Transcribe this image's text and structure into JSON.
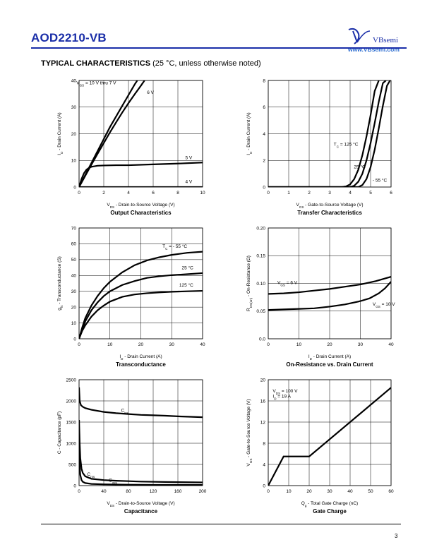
{
  "header": {
    "part_number": "AOD2210-VB",
    "brand": "VBsemi",
    "url": "www.VBsemi.com",
    "brand_color": "#1a2ea8"
  },
  "section": {
    "title_bold": "TYPICAL CHARACTERISTICS",
    "title_normal": " (25 °C, unless otherwise noted)"
  },
  "page_number": "3",
  "chart_data": [
    {
      "id": "output",
      "type": "line",
      "title": "Output Characteristics",
      "xlabel": "V_DS - Drain-to-Source Voltage (V)",
      "ylabel": "I_D - Drain Current (A)",
      "xlim": [
        0,
        10
      ],
      "ylim": [
        0,
        40
      ],
      "xticks": [
        0,
        2,
        4,
        6,
        8,
        10
      ],
      "yticks": [
        0,
        10,
        20,
        30,
        40
      ],
      "grid": true,
      "series": [
        {
          "name": "V_GS = 10 V thru 7 V",
          "x": [
            0,
            0.5,
            1,
            1.5,
            2,
            2.5,
            3,
            3.5,
            4,
            4.5,
            5
          ],
          "y": [
            0,
            4.5,
            9,
            13.5,
            18,
            22.5,
            26.5,
            30.5,
            34.5,
            38.5,
            42
          ]
        },
        {
          "name": "6 V",
          "x": [
            0,
            0.5,
            1,
            1.5,
            2,
            2.5,
            3,
            3.5,
            4,
            4.5,
            5,
            5.3
          ],
          "y": [
            0,
            4.2,
            8.4,
            12.5,
            16.5,
            20.5,
            24.3,
            28,
            31.5,
            34.8,
            38,
            40
          ]
        },
        {
          "name": "5 V",
          "x": [
            0,
            0.2,
            0.4,
            0.6,
            0.8,
            1,
            1.5,
            2,
            3,
            4,
            6,
            8,
            10
          ],
          "y": [
            0,
            3,
            5.2,
            6.5,
            7.2,
            7.6,
            8,
            8.1,
            8.2,
            8.2,
            8.5,
            8.8,
            9.2
          ]
        },
        {
          "name": "4 V",
          "x": [
            0,
            10
          ],
          "y": [
            0,
            0
          ]
        }
      ]
    },
    {
      "id": "transfer",
      "type": "line",
      "title": "Transfer Characteristics",
      "xlabel": "V_GS - Gate-to-Source Voltage (V)",
      "ylabel": "I_D - Drain Current (A)",
      "xlim": [
        0,
        6
      ],
      "ylim": [
        0,
        8
      ],
      "xticks": [
        0,
        1,
        2,
        3,
        4,
        5,
        6
      ],
      "yticks": [
        0,
        2,
        4,
        6,
        8
      ],
      "grid": true,
      "series": [
        {
          "name": "T_C = 125 °C",
          "x": [
            0,
            3.6,
            3.8,
            4,
            4.2,
            4.4,
            4.6,
            4.8,
            5,
            5.2,
            5.4
          ],
          "y": [
            0,
            0,
            0.05,
            0.2,
            0.6,
            1.3,
            2.4,
            3.8,
            5.4,
            7.2,
            8
          ]
        },
        {
          "name": "25 °C",
          "x": [
            0,
            4,
            4.2,
            4.4,
            4.6,
            4.8,
            5,
            5.2,
            5.4,
            5.6,
            5.75
          ],
          "y": [
            0,
            0,
            0.1,
            0.4,
            1,
            2,
            3.3,
            4.8,
            6.4,
            7.8,
            8
          ]
        },
        {
          "name": "- 55 °C",
          "x": [
            0,
            4.4,
            4.6,
            4.8,
            5,
            5.2,
            5.4,
            5.6,
            5.8,
            5.95
          ],
          "y": [
            0,
            0,
            0.15,
            0.6,
            1.5,
            2.8,
            4.4,
            6.1,
            7.6,
            8
          ]
        }
      ]
    },
    {
      "id": "transconductance",
      "type": "line",
      "title": "Transconductance",
      "xlabel": "I_D - Drain Current (A)",
      "ylabel": "g_fs - Transconductance (S)",
      "xlim": [
        0,
        40
      ],
      "ylim": [
        0,
        70
      ],
      "xticks": [
        0,
        10,
        20,
        30,
        40
      ],
      "yticks": [
        0,
        10,
        20,
        30,
        40,
        50,
        60,
        70
      ],
      "grid": true,
      "series": [
        {
          "name": "T_C = - 55 °C",
          "x": [
            0,
            1,
            2,
            4,
            6,
            8,
            10,
            14,
            18,
            22,
            26,
            30,
            35,
            40
          ],
          "y": [
            0,
            7,
            13,
            21,
            27,
            32,
            36,
            42,
            46.5,
            49.5,
            51.5,
            53,
            54.3,
            55
          ]
        },
        {
          "name": "25 °C",
          "x": [
            0,
            1,
            2,
            4,
            6,
            8,
            10,
            14,
            18,
            22,
            26,
            30,
            35,
            40
          ],
          "y": [
            0,
            6,
            11,
            18,
            23,
            27,
            30,
            34,
            36.5,
            38.5,
            39.5,
            40.2,
            40.8,
            41.5
          ]
        },
        {
          "name": "125 °C",
          "x": [
            0,
            1,
            2,
            4,
            6,
            8,
            10,
            14,
            18,
            22,
            26,
            30,
            35,
            40
          ],
          "y": [
            0,
            5,
            8.5,
            14,
            18,
            21,
            23.5,
            26.5,
            28,
            28.8,
            29.3,
            29.7,
            30,
            30.3
          ]
        }
      ]
    },
    {
      "id": "on-resistance",
      "type": "line",
      "title": "On-Resistance vs. Drain Current",
      "xlabel": "I_D - Drain Current (A)",
      "ylabel": "R_DS(on) - On-Resistance (Ω)",
      "xlim": [
        0,
        40
      ],
      "ylim": [
        0,
        0.2
      ],
      "xticks": [
        0,
        10,
        20,
        30,
        40
      ],
      "yticks": [
        "0.0",
        "0.05",
        "0.10",
        "0.15",
        "0.20"
      ],
      "grid": true,
      "series": [
        {
          "name": "V_GS = 6 V",
          "x": [
            0,
            5,
            10,
            15,
            20,
            25,
            30,
            35,
            40
          ],
          "y": [
            0.081,
            0.082,
            0.084,
            0.087,
            0.09,
            0.094,
            0.098,
            0.104,
            0.112
          ]
        },
        {
          "name": "V_GS = 10 V",
          "x": [
            0,
            5,
            10,
            15,
            20,
            25,
            30,
            33,
            36,
            38,
            40
          ],
          "y": [
            0.052,
            0.053,
            0.054,
            0.055,
            0.058,
            0.062,
            0.068,
            0.073,
            0.082,
            0.091,
            0.103
          ]
        }
      ]
    },
    {
      "id": "capacitance",
      "type": "line",
      "title": "Capacitance",
      "xlabel": "V_DS - Drain-to-Source Voltage (V)",
      "ylabel": "C - Capacitance (pF)",
      "xlim": [
        0,
        200
      ],
      "ylim": [
        0,
        2500
      ],
      "xticks": [
        0,
        40,
        80,
        120,
        160,
        200
      ],
      "yticks": [
        0,
        500,
        1000,
        1500,
        2000,
        2500
      ],
      "grid": true,
      "series": [
        {
          "name": "C_iss",
          "x": [
            0,
            1,
            3,
            6,
            10,
            20,
            40,
            60,
            80,
            100,
            120,
            140,
            160,
            180,
            200
          ],
          "y": [
            2320,
            2000,
            1900,
            1860,
            1830,
            1790,
            1740,
            1710,
            1690,
            1670,
            1660,
            1650,
            1635,
            1625,
            1615
          ]
        },
        {
          "name": "C_oss",
          "x": [
            0,
            1,
            2,
            4,
            6,
            10,
            20,
            40,
            60,
            80,
            100,
            140,
            200
          ],
          "y": [
            1550,
            1000,
            650,
            400,
            300,
            220,
            160,
            130,
            115,
            105,
            95,
            85,
            75
          ]
        },
        {
          "name": "C_rss",
          "x": [
            0,
            1,
            2,
            4,
            6,
            10,
            20,
            40,
            80,
            120,
            200
          ],
          "y": [
            900,
            450,
            250,
            130,
            90,
            60,
            40,
            30,
            22,
            18,
            15
          ]
        }
      ]
    },
    {
      "id": "gate-charge",
      "type": "line",
      "title": "Gate Charge",
      "xlabel": "Q_g - Total Gate Charge (nC)",
      "ylabel": "V_GS - Gate-to-Source Voltage (V)",
      "xlim": [
        0,
        60
      ],
      "ylim": [
        0,
        20
      ],
      "xticks": [
        0,
        10,
        20,
        30,
        40,
        50,
        60
      ],
      "yticks": [
        0,
        4,
        8,
        12,
        16,
        20
      ],
      "grid": true,
      "annotation": [
        "V_DS = 100 V",
        "I_D = 19 A"
      ],
      "series": [
        {
          "name": "",
          "x": [
            0,
            7.5,
            20,
            60
          ],
          "y": [
            0,
            5.5,
            5.5,
            18.5
          ]
        }
      ]
    }
  ]
}
